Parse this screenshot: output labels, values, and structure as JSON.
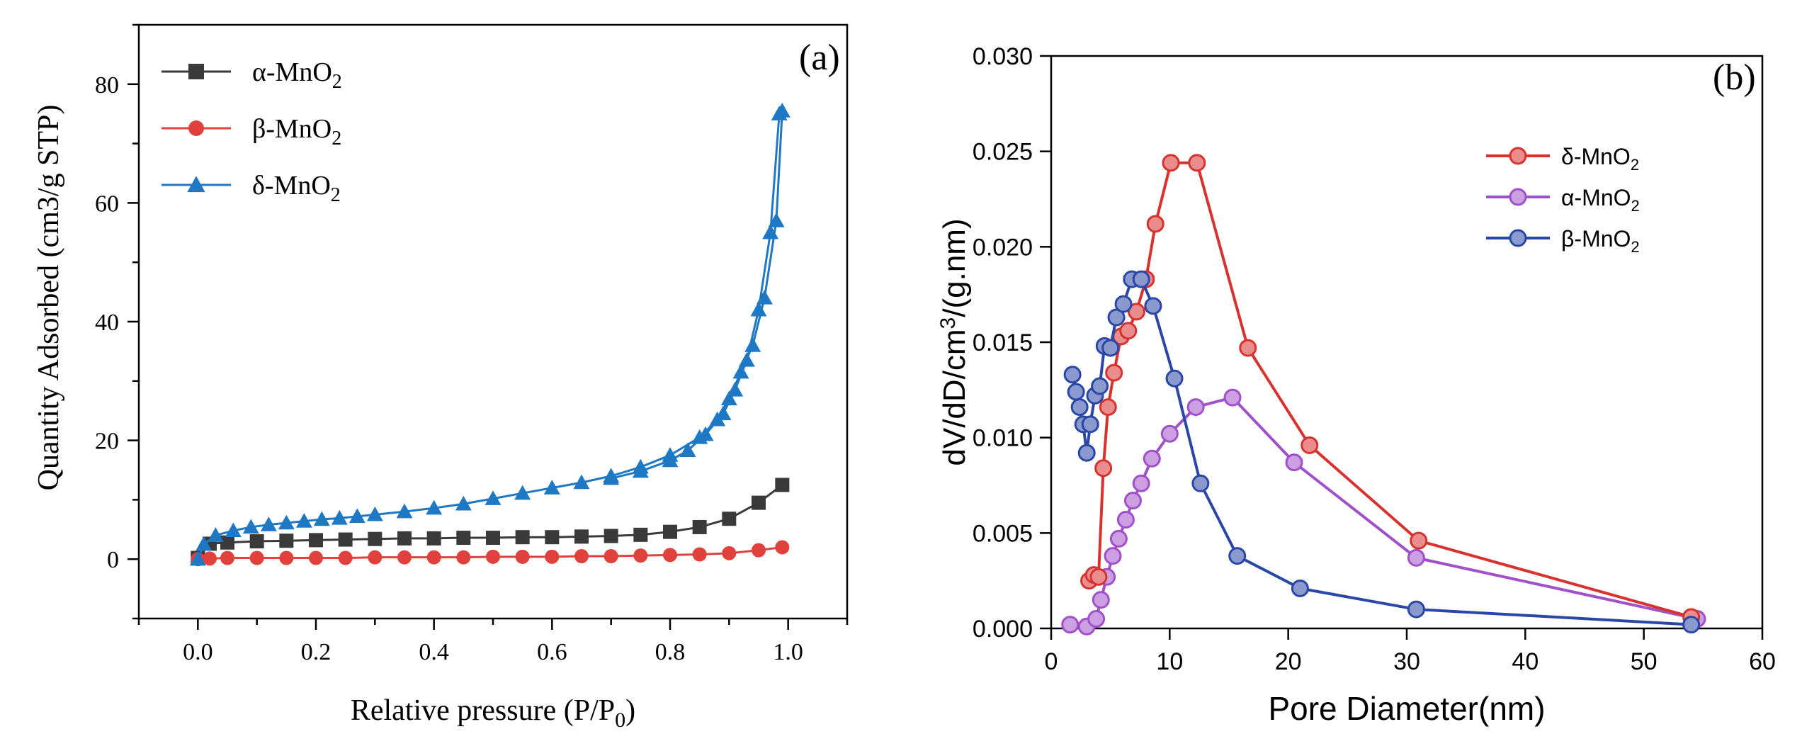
{
  "colors": {
    "alpha_a": "#3a3a3a",
    "beta_a": "#e0413c",
    "delta_a": "#1f78c4",
    "delta_b": "#d7322d",
    "alpha_b": "#a050c8",
    "beta_b": "#2a47a8"
  },
  "chart_data": [
    {
      "type": "line",
      "panel_label": "(a)",
      "title": "",
      "xlabel_main": "Relative pressure (P/P",
      "xlabel_sub": "0",
      "xlabel_end": ")",
      "ylabel": "Quantity Adsorbed (cm3/g STP)",
      "xlim": [
        -0.1,
        1.1
      ],
      "ylim": [
        -10,
        90
      ],
      "xticks": [
        0.0,
        0.2,
        0.4,
        0.6,
        0.8,
        1.0
      ],
      "xtick_labels": [
        "0.0",
        "0.2",
        "0.4",
        "0.6",
        "0.8",
        "1.0"
      ],
      "yticks": [
        0,
        20,
        40,
        60,
        80
      ],
      "ytick_labels": [
        "0",
        "20",
        "40",
        "60",
        "80"
      ],
      "legend_position": "top-left",
      "series": [
        {
          "name": "α-MnO",
          "name_sub": "2",
          "marker": "square",
          "color": "#3a3a3a",
          "x": [
            0.0,
            0.02,
            0.05,
            0.1,
            0.15,
            0.2,
            0.25,
            0.3,
            0.35,
            0.4,
            0.45,
            0.5,
            0.55,
            0.6,
            0.65,
            0.7,
            0.75,
            0.8,
            0.85,
            0.9,
            0.95,
            0.99
          ],
          "y": [
            0.2,
            2.6,
            2.8,
            3.0,
            3.1,
            3.2,
            3.3,
            3.4,
            3.5,
            3.5,
            3.6,
            3.6,
            3.7,
            3.7,
            3.8,
            3.9,
            4.1,
            4.6,
            5.4,
            6.8,
            9.5,
            12.5
          ]
        },
        {
          "name": "β-MnO",
          "name_sub": "2",
          "marker": "circle",
          "color": "#e0413c",
          "x": [
            0.0,
            0.02,
            0.05,
            0.1,
            0.15,
            0.2,
            0.25,
            0.3,
            0.35,
            0.4,
            0.45,
            0.5,
            0.55,
            0.6,
            0.65,
            0.7,
            0.75,
            0.8,
            0.85,
            0.9,
            0.95,
            0.99
          ],
          "y": [
            0.0,
            0.1,
            0.2,
            0.2,
            0.2,
            0.2,
            0.2,
            0.3,
            0.3,
            0.3,
            0.3,
            0.4,
            0.4,
            0.4,
            0.5,
            0.5,
            0.6,
            0.7,
            0.8,
            1.0,
            1.5,
            2.0
          ]
        },
        {
          "name": "δ-MnO",
          "name_sub": "2",
          "marker": "triangle",
          "color": "#1f78c4",
          "x": [
            0.0,
            0.01,
            0.03,
            0.06,
            0.09,
            0.12,
            0.15,
            0.18,
            0.21,
            0.24,
            0.27,
            0.3,
            0.35,
            0.4,
            0.45,
            0.5,
            0.55,
            0.6,
            0.65,
            0.7,
            0.75,
            0.8,
            0.85,
            0.88,
            0.9,
            0.92,
            0.94,
            0.96,
            0.98,
            0.99,
            0.985,
            0.97,
            0.95,
            0.93,
            0.91,
            0.89,
            0.86,
            0.83,
            0.8,
            0.75,
            0.7
          ],
          "y": [
            0.0,
            2.5,
            4.0,
            4.8,
            5.4,
            5.8,
            6.1,
            6.4,
            6.7,
            6.9,
            7.2,
            7.5,
            8.0,
            8.6,
            9.3,
            10.2,
            11.1,
            12.0,
            12.9,
            14.0,
            15.5,
            17.5,
            20.5,
            23.5,
            27.0,
            31.5,
            36.0,
            44.0,
            57.0,
            75.5,
            75.0,
            55.0,
            42.0,
            33.5,
            28.5,
            24.5,
            21.0,
            18.3,
            16.6,
            14.8,
            13.6
          ]
        }
      ]
    },
    {
      "type": "line",
      "panel_label": "(b)",
      "title": "",
      "xlabel": "Pore Diameter(nm)",
      "ylabel_main": "dV/dD/cm",
      "ylabel_sup": "3",
      "ylabel_end": "/(g.nm)",
      "xlim": [
        0,
        60
      ],
      "ylim": [
        0,
        0.03
      ],
      "xticks": [
        0,
        10,
        20,
        30,
        40,
        50,
        60
      ],
      "xtick_labels": [
        "0",
        "10",
        "20",
        "30",
        "40",
        "50",
        "60"
      ],
      "yticks": [
        0,
        0.005,
        0.01,
        0.015,
        0.02,
        0.025,
        0.03
      ],
      "ytick_labels": [
        "0.000",
        "0.005",
        "0.010",
        "0.015",
        "0.020",
        "0.025",
        "0.030"
      ],
      "legend_position": "top-right",
      "series": [
        {
          "name": "δ-MnO",
          "name_sub": "2",
          "marker": "circle",
          "color": "#d7322d",
          "x": [
            3.2,
            3.6,
            4.0,
            4.4,
            4.8,
            5.3,
            5.9,
            6.5,
            7.2,
            8.0,
            8.8,
            10.1,
            12.3,
            16.6,
            21.8,
            31.0,
            54.0
          ],
          "y": [
            0.0025,
            0.0028,
            0.0027,
            0.0084,
            0.0116,
            0.0134,
            0.0153,
            0.0156,
            0.0166,
            0.0183,
            0.0212,
            0.0244,
            0.0244,
            0.0147,
            0.0096,
            0.0046,
            0.0006
          ]
        },
        {
          "name": "α-MnO",
          "name_sub": "2",
          "marker": "circle",
          "color": "#a050c8",
          "x": [
            1.6,
            3.0,
            3.8,
            4.2,
            4.7,
            5.2,
            5.7,
            6.3,
            6.9,
            7.6,
            8.5,
            10.0,
            12.2,
            15.3,
            20.5,
            30.8,
            54.5
          ],
          "y": [
            0.0002,
            0.0001,
            0.0005,
            0.0015,
            0.0027,
            0.0038,
            0.0047,
            0.0057,
            0.0067,
            0.0076,
            0.0089,
            0.0102,
            0.0116,
            0.0121,
            0.0087,
            0.0037,
            0.0005
          ]
        },
        {
          "name": "β-MnO",
          "name_sub": "2",
          "marker": "circle",
          "color": "#2a47a8",
          "x": [
            1.8,
            2.1,
            2.4,
            2.7,
            3.0,
            3.3,
            3.7,
            4.1,
            4.5,
            5.0,
            5.5,
            6.1,
            6.8,
            7.6,
            8.6,
            10.4,
            12.6,
            15.7,
            21.0,
            30.8,
            54.0
          ],
          "y": [
            0.0133,
            0.0124,
            0.0116,
            0.0107,
            0.0092,
            0.0107,
            0.0122,
            0.0127,
            0.0148,
            0.0147,
            0.0163,
            0.017,
            0.0183,
            0.0183,
            0.0169,
            0.0131,
            0.0076,
            0.0038,
            0.0021,
            0.001,
            0.0002
          ]
        }
      ]
    }
  ]
}
